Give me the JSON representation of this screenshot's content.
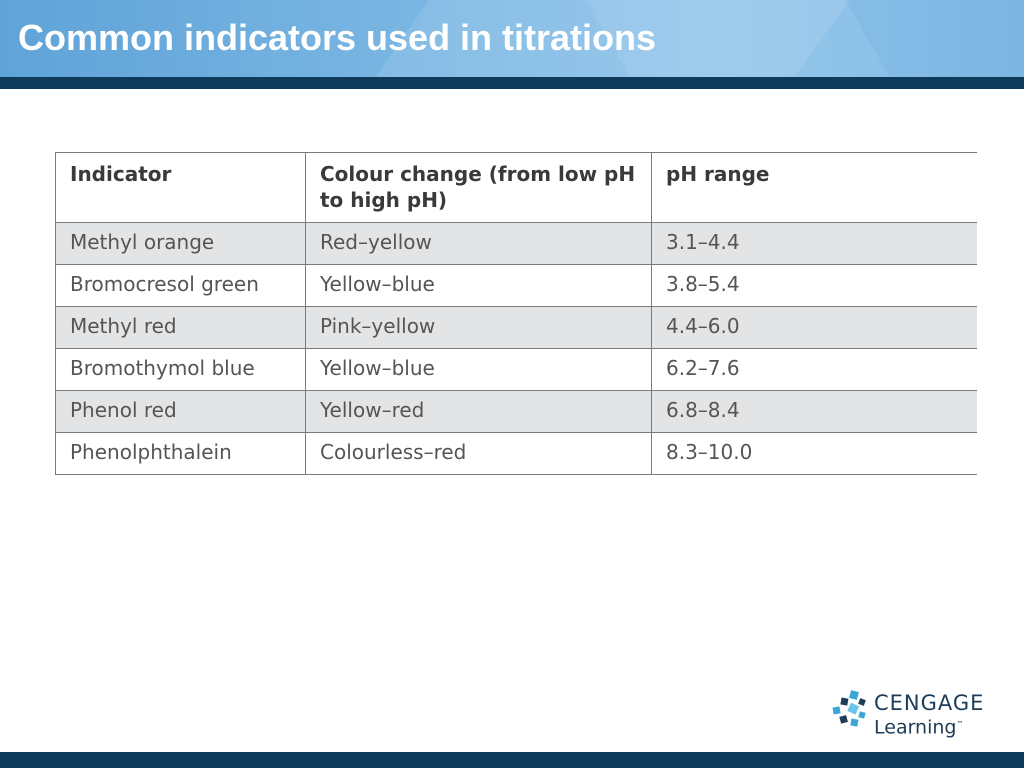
{
  "slide": {
    "title": "Common indicators used in titrations"
  },
  "table": {
    "headers": [
      "Indicator",
      "Colour change (from low pH to high pH)",
      "pH range"
    ],
    "rows": [
      [
        "Methyl orange",
        "Red–yellow",
        "3.1–4.4"
      ],
      [
        "Bromocresol green",
        "Yellow–blue",
        "3.8–5.4"
      ],
      [
        "Methyl red",
        "Pink–yellow",
        "4.4–6.0"
      ],
      [
        "Bromothymol blue",
        "Yellow–blue",
        "6.2–7.6"
      ],
      [
        "Phenol red",
        "Yellow–red",
        "6.8–8.4"
      ],
      [
        "Phenolphthalein",
        "Colourless–red",
        "8.3–10.0"
      ]
    ]
  },
  "logo": {
    "brand": "CENGAGE",
    "sub": "Learning",
    "trademark": "™",
    "icon": "cengage-squares-icon"
  },
  "colors": {
    "header_blue": "#7db8e4",
    "dark_navy": "#0e3a5c",
    "row_shade": "#e3e4e5",
    "logo_accent": "#3aa6d8"
  }
}
